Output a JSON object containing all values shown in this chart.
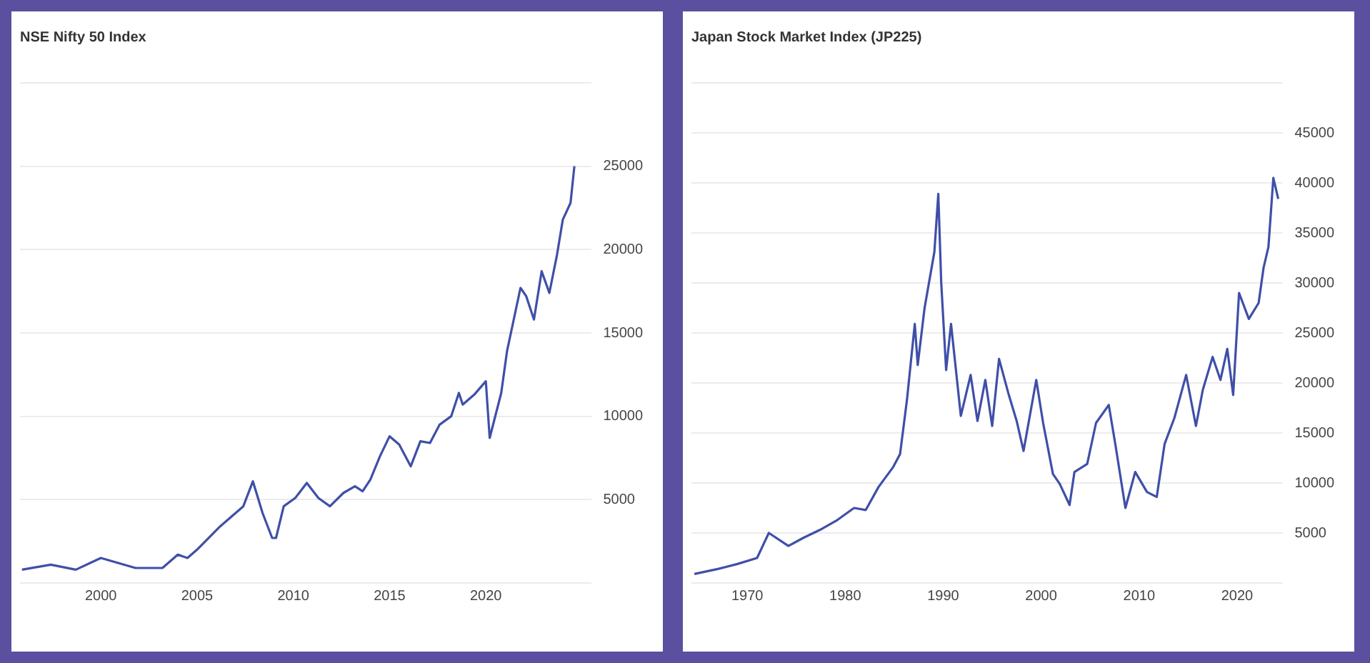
{
  "chart_data": [
    {
      "type": "line",
      "title": "NSE Nifty 50 Index",
      "x": [
        1995.9,
        1997.4,
        1998.7,
        2000.0,
        2001.8,
        2003.2,
        2004.0,
        2004.5,
        2005.0,
        2006.2,
        2007.4,
        2007.9,
        2008.4,
        2008.9,
        2009.1,
        2009.5,
        2010.1,
        2010.7,
        2011.3,
        2011.9,
        2012.6,
        2013.2,
        2013.6,
        2014.0,
        2014.5,
        2015.0,
        2015.5,
        2016.1,
        2016.6,
        2017.1,
        2017.6,
        2018.2,
        2018.6,
        2018.8,
        2019.4,
        2020.0,
        2020.2,
        2020.8,
        2021.1,
        2021.8,
        2022.1,
        2022.5,
        2022.9,
        2023.3,
        2023.7,
        2024.0,
        2024.4,
        2024.6
      ],
      "series": [
        {
          "color": "#3f4fa8",
          "values": [
            800,
            1100,
            800,
            1500,
            900,
            900,
            1700,
            1500,
            2000,
            3400,
            4600,
            6100,
            4200,
            2700,
            2700,
            4600,
            5100,
            6000,
            5100,
            4600,
            5400,
            5800,
            5500,
            6200,
            7600,
            8800,
            8300,
            7000,
            8500,
            8400,
            9500,
            10000,
            11400,
            10700,
            11300,
            12100,
            8700,
            11400,
            13900,
            17700,
            17200,
            15800,
            18700,
            17400,
            19700,
            21800,
            22800,
            25000
          ]
        }
      ],
      "xlim": [
        1995.8,
        2025.5
      ],
      "xticks": [
        2000,
        2005,
        2010,
        2015,
        2020
      ],
      "ylim": [
        0,
        30000
      ],
      "yticks": [
        {
          "value": 0,
          "label": null
        },
        5000,
        10000,
        15000,
        20000,
        25000,
        {
          "value": 30000,
          "label": null
        }
      ],
      "grid": "y",
      "legend": false,
      "marker": "none",
      "line_style": "solid"
    },
    {
      "type": "line",
      "title": "Japan Stock Market Index (JP225)",
      "x": [
        1964.6,
        1967.0,
        1969.0,
        1971.0,
        1972.2,
        1974.2,
        1975.7,
        1977.4,
        1979.2,
        1980.9,
        1982.1,
        1983.4,
        1984.9,
        1985.6,
        1986.3,
        1987.1,
        1987.4,
        1988.1,
        1989.1,
        1989.5,
        1989.8,
        1990.3,
        1990.8,
        1991.8,
        1992.8,
        1993.5,
        1994.3,
        1995.0,
        1995.7,
        1996.7,
        1997.5,
        1998.2,
        1999.5,
        2000.2,
        2001.2,
        2001.9,
        2002.9,
        2003.4,
        2004.7,
        2005.6,
        2006.9,
        2007.6,
        2008.6,
        2009.6,
        2010.8,
        2011.8,
        2012.6,
        2013.6,
        2014.8,
        2015.8,
        2016.5,
        2017.5,
        2018.3,
        2019.0,
        2019.6,
        2020.2,
        2021.2,
        2022.2,
        2022.7,
        2023.2,
        2023.7,
        2024.2
      ],
      "series": [
        {
          "color": "#3f4fa8",
          "values": [
            900,
            1400,
            1900,
            2500,
            5000,
            3700,
            4500,
            5300,
            6300,
            7500,
            7300,
            9600,
            11600,
            12900,
            18300,
            25900,
            21800,
            27500,
            33100,
            38900,
            30000,
            21300,
            25900,
            16700,
            20800,
            16200,
            20300,
            15700,
            22400,
            18800,
            16200,
            13200,
            20300,
            16000,
            10900,
            9900,
            7800,
            11100,
            11900,
            16000,
            17800,
            13700,
            7500,
            11100,
            9100,
            8600,
            13900,
            16500,
            20800,
            15700,
            19300,
            22600,
            20300,
            23400,
            18800,
            29000,
            26400,
            28000,
            31500,
            33600,
            40500,
            38400
          ]
        }
      ],
      "xlim": [
        1964.3,
        2024.7
      ],
      "xticks": [
        1970,
        1980,
        1990,
        2000,
        2010,
        2020
      ],
      "ylim": [
        0,
        50000
      ],
      "yticks": [
        {
          "value": 0,
          "label": null
        },
        5000,
        10000,
        15000,
        20000,
        25000,
        30000,
        35000,
        40000,
        45000,
        {
          "value": 50000,
          "label": null
        }
      ],
      "grid": "y",
      "legend": false,
      "marker": "none",
      "line_style": "solid"
    }
  ]
}
